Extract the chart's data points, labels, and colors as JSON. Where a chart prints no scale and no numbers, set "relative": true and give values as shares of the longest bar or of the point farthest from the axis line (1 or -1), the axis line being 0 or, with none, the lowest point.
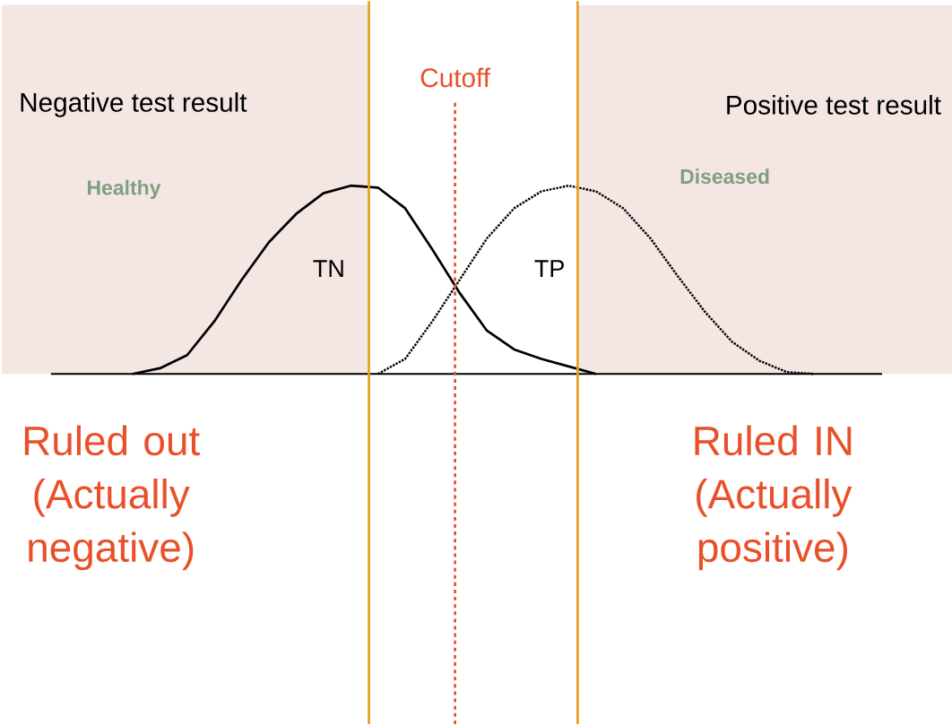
{
  "chart_data": {
    "type": "line",
    "relative": true,
    "categories": [
      null,
      null,
      null,
      null,
      null,
      null,
      null,
      null,
      null,
      null,
      null,
      null,
      null,
      null,
      null,
      null,
      null,
      null,
      null,
      null,
      null,
      null,
      null,
      null,
      null,
      null,
      null,
      null,
      null,
      null,
      null
    ],
    "series": [
      {
        "color": "#000000",
        "line_style": "solid",
        "values": [
          null,
          null,
          null,
          0,
          0.03,
          0.1,
          0.28,
          0.5,
          0.7,
          0.85,
          0.96,
          1,
          0.99,
          0.88,
          0.66,
          0.43,
          0.23,
          0.13,
          0.08,
          0.04,
          0,
          null,
          null,
          null,
          null,
          null,
          null,
          null,
          null,
          null,
          null
        ]
      },
      {
        "color": "#000000",
        "line_style": "dotted",
        "values": [
          null,
          null,
          null,
          null,
          null,
          null,
          null,
          null,
          null,
          null,
          null,
          null,
          0,
          0.08,
          0.28,
          0.5,
          0.72,
          0.88,
          0.97,
          1,
          0.97,
          0.88,
          0.72,
          0.52,
          0.33,
          0.17,
          0.07,
          0.01,
          0,
          null,
          null
        ]
      }
    ],
    "annotations": [
      "Negative test result",
      "Cutoff",
      "Positive test result",
      "Healthy",
      "Diseased",
      "TN",
      "TP",
      "Ruled out (Actually negative)",
      "Ruled IN (Actually positive)"
    ]
  }
}
